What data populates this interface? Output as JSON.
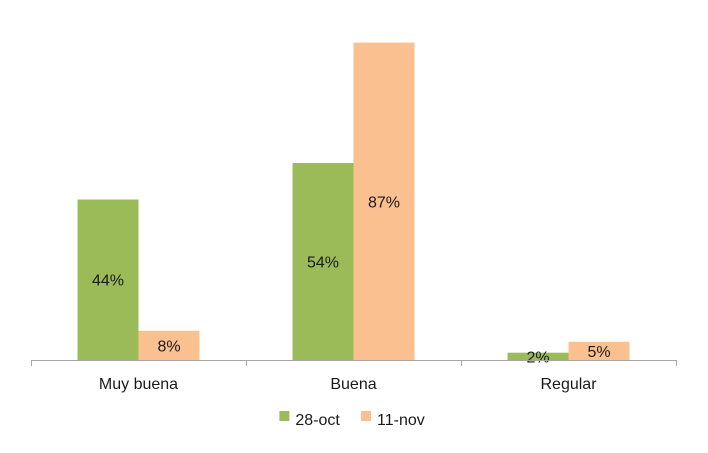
{
  "chart_data": {
    "type": "bar",
    "categories": [
      "Muy buena",
      "Buena",
      "Regular"
    ],
    "series": [
      {
        "name": "28-oct",
        "values": [
          44,
          54,
          2
        ],
        "labels": [
          "44%",
          "54%",
          "2%"
        ],
        "color": "#9bbb59"
      },
      {
        "name": "11-nov",
        "values": [
          8,
          87,
          5
        ],
        "labels": [
          "8%",
          "87%",
          "5%"
        ],
        "color": "#fac090"
      }
    ],
    "value_unit": "%",
    "ylim": [
      0,
      88.8
    ],
    "grid": false,
    "legend_position": "bottom",
    "axis_color": "#a6a6a6"
  }
}
